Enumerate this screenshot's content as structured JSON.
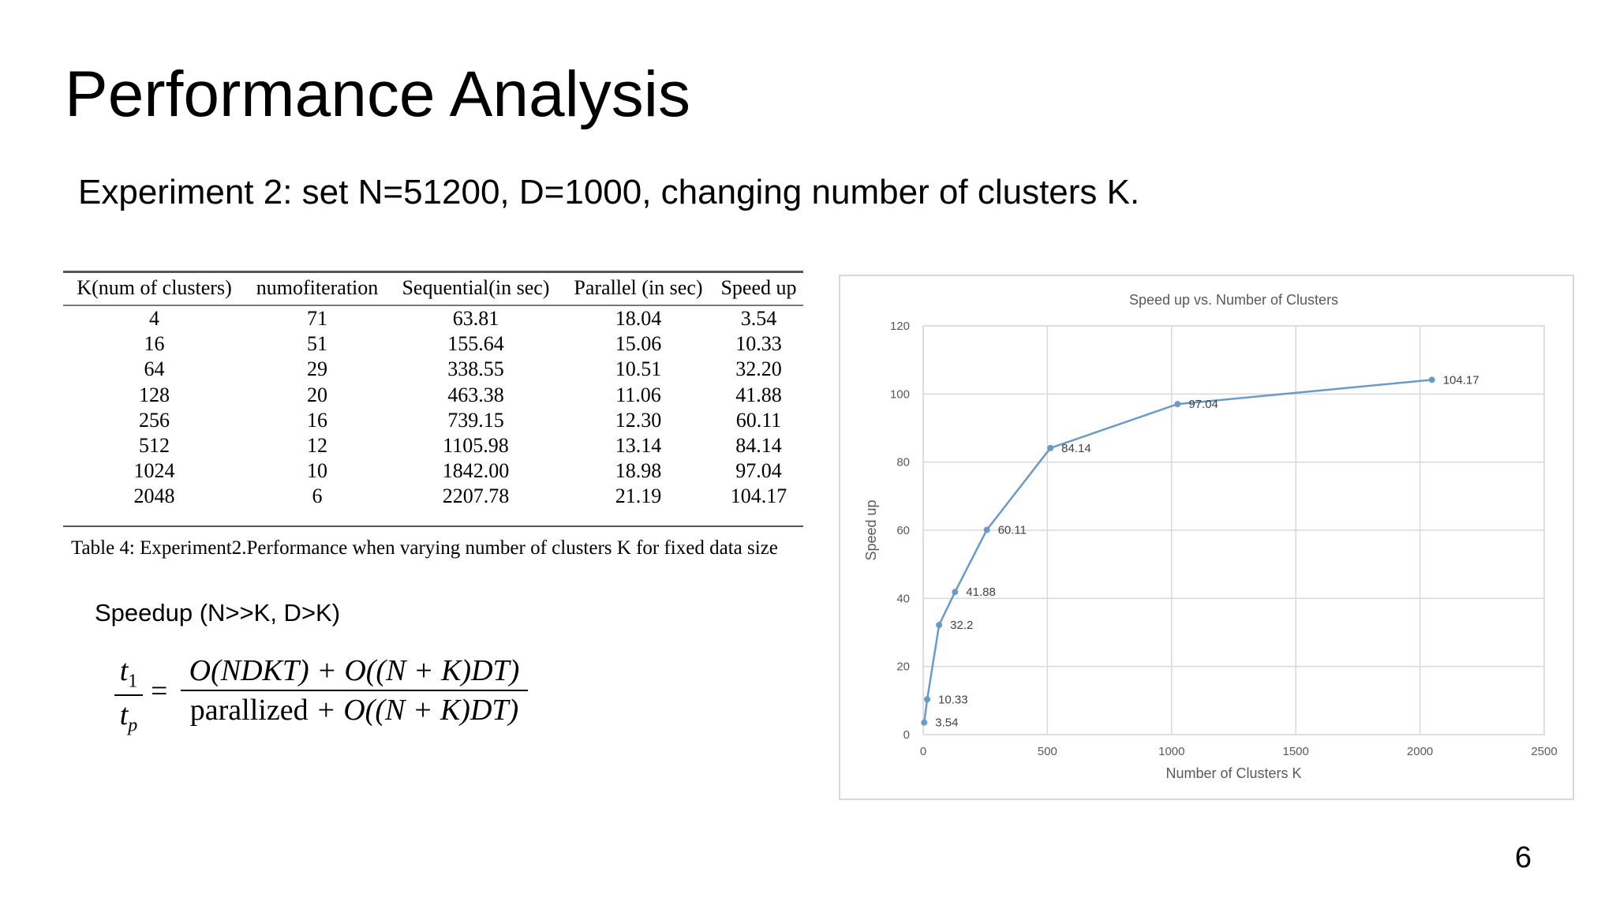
{
  "slide": {
    "title": "Performance Analysis",
    "subtitle": "Experiment 2: set N=51200, D=1000, changing number of clusters K.",
    "page_number": "6"
  },
  "table": {
    "headers": [
      "K(num of clusters)",
      "numofiteration",
      "Sequential(in sec)",
      "Parallel (in sec)",
      "Speed up"
    ],
    "rows": [
      [
        "4",
        "71",
        "63.81",
        "18.04",
        "3.54"
      ],
      [
        "16",
        "51",
        "155.64",
        "15.06",
        "10.33"
      ],
      [
        "64",
        "29",
        "338.55",
        "10.51",
        "32.20"
      ],
      [
        "128",
        "20",
        "463.38",
        "11.06",
        "41.88"
      ],
      [
        "256",
        "16",
        "739.15",
        "12.30",
        "60.11"
      ],
      [
        "512",
        "12",
        "1105.98",
        "13.14",
        "84.14"
      ],
      [
        "1024",
        "10",
        "1842.00",
        "18.98",
        "97.04"
      ],
      [
        "2048",
        "6",
        "2207.78",
        "21.19",
        "104.17"
      ]
    ],
    "caption": "Table 4: Experiment2.Performance when varying number of clusters K for fixed data size"
  },
  "speedup_note": "Speedup (N>>K, D>K)",
  "formula": {
    "lhs_num_var": "t",
    "lhs_num_sub": "1",
    "lhs_den_var": "t",
    "lhs_den_sub": "p",
    "equals": "=",
    "rhs_num": "O(NDKT) + O((N + K)DT)",
    "rhs_den_word": "parallized",
    "rhs_den_rest": " + O((N + K)DT)"
  },
  "chart_data": {
    "type": "line",
    "title": "Speed up vs. Number of Clusters",
    "xlabel": "Number of Clusters K",
    "ylabel": "Speed up",
    "x": [
      4,
      16,
      64,
      128,
      256,
      512,
      1024,
      2048
    ],
    "series": [
      {
        "values": [
          3.54,
          10.33,
          32.2,
          41.88,
          60.11,
          84.14,
          97.04,
          104.17
        ]
      }
    ],
    "data_labels": [
      "3.54",
      "10.33",
      "32.2",
      "41.88",
      "60.11",
      "84.14",
      "97.04",
      "104.17"
    ],
    "xlim": [
      0,
      2500
    ],
    "ylim": [
      0,
      120
    ],
    "xticks": [
      0,
      500,
      1000,
      1500,
      2000,
      2500
    ],
    "yticks": [
      0,
      20,
      40,
      60,
      80,
      100,
      120
    ],
    "grid": true,
    "line_color": "#6a9bc8"
  }
}
